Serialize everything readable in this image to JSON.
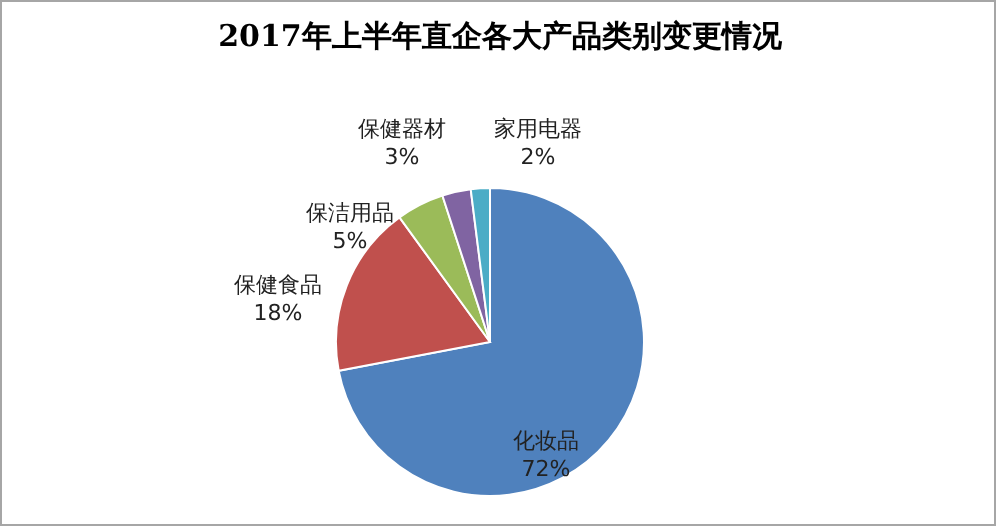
{
  "chart_data": {
    "type": "pie",
    "title": "2017年上半年直企各大产品类别变更情况",
    "categories": [
      "化妆品",
      "保健食品",
      "保洁用品",
      "保健器材",
      "家用电器"
    ],
    "values": [
      72,
      18,
      5,
      3,
      2
    ],
    "value_labels": [
      "72%",
      "18%",
      "5%",
      "3%",
      "2%"
    ],
    "colors": [
      "#4f81bd",
      "#c0504d",
      "#9bbb59",
      "#8064a2",
      "#4bacc6"
    ]
  }
}
